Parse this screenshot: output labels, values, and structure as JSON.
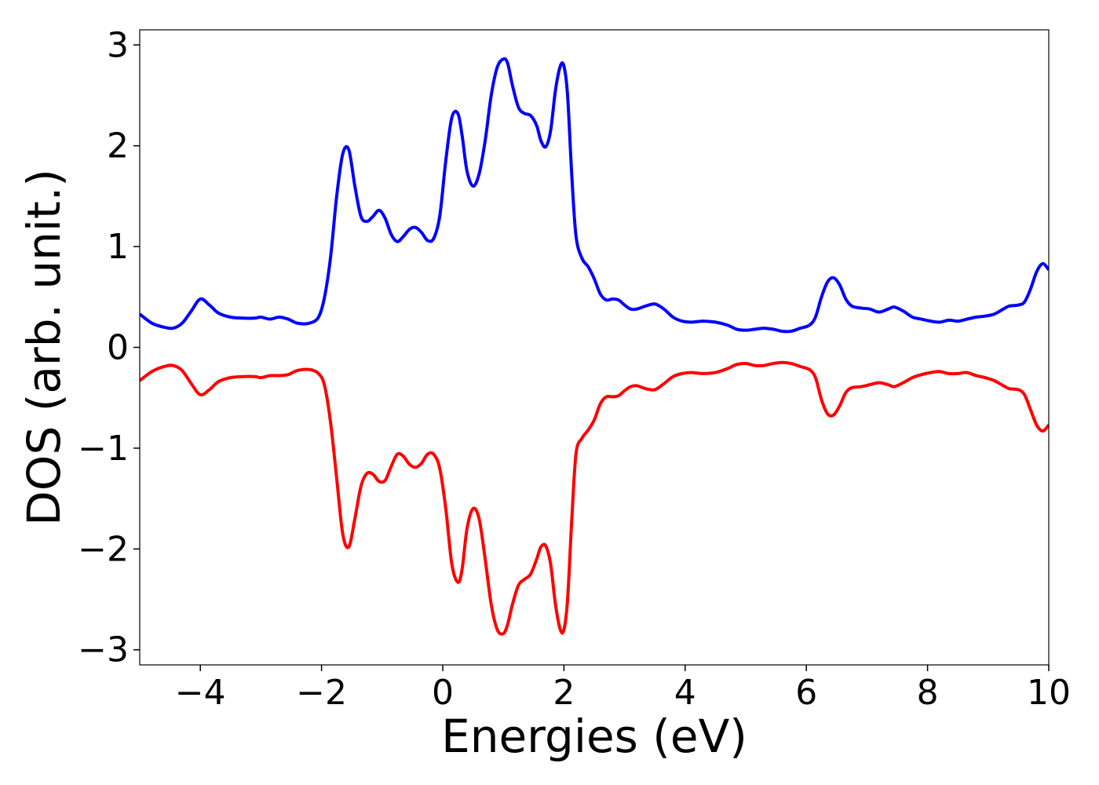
{
  "chart_data": {
    "type": "line",
    "xlabel": "Energies (eV)",
    "ylabel": "DOS (arb. unit.)",
    "xlim": [
      -5,
      10
    ],
    "ylim": [
      -3.15,
      3.15
    ],
    "x_ticks": [
      -4,
      -2,
      0,
      2,
      4,
      6,
      8,
      10
    ],
    "x_tick_labels": [
      "−4",
      "−2",
      "0",
      "2",
      "4",
      "6",
      "8",
      "10"
    ],
    "y_ticks": [
      -3,
      -2,
      -1,
      0,
      1,
      2,
      3
    ],
    "y_tick_labels": [
      "−3",
      "−2",
      "−1",
      "0",
      "1",
      "2",
      "3"
    ],
    "grid": false,
    "legend": "none",
    "series": [
      {
        "color": "#0000ff",
        "x": [
          -5.0,
          -4.8,
          -4.6,
          -4.45,
          -4.3,
          -4.15,
          -4.0,
          -3.85,
          -3.7,
          -3.5,
          -3.3,
          -3.1,
          -3.0,
          -2.85,
          -2.7,
          -2.55,
          -2.4,
          -2.2,
          -2.05,
          -1.95,
          -1.85,
          -1.75,
          -1.65,
          -1.55,
          -1.45,
          -1.35,
          -1.25,
          -1.15,
          -1.05,
          -0.95,
          -0.85,
          -0.75,
          -0.65,
          -0.55,
          -0.45,
          -0.35,
          -0.25,
          -0.15,
          -0.05,
          0.05,
          0.15,
          0.25,
          0.32,
          0.4,
          0.5,
          0.6,
          0.7,
          0.8,
          0.9,
          1.0,
          1.07,
          1.15,
          1.25,
          1.35,
          1.45,
          1.55,
          1.62,
          1.7,
          1.78,
          1.86,
          1.94,
          2.0,
          2.06,
          2.13,
          2.2,
          2.3,
          2.4,
          2.5,
          2.6,
          2.7,
          2.8,
          2.9,
          3.0,
          3.1,
          3.2,
          3.35,
          3.5,
          3.65,
          3.8,
          3.95,
          4.1,
          4.3,
          4.5,
          4.7,
          4.85,
          5.0,
          5.15,
          5.3,
          5.45,
          5.6,
          5.75,
          5.9,
          6.05,
          6.15,
          6.25,
          6.35,
          6.45,
          6.55,
          6.65,
          6.75,
          6.9,
          7.05,
          7.2,
          7.35,
          7.45,
          7.6,
          7.75,
          7.9,
          8.05,
          8.2,
          8.35,
          8.5,
          8.65,
          8.8,
          8.95,
          9.1,
          9.25,
          9.35,
          9.5,
          9.6,
          9.7,
          9.8,
          9.9,
          10.0
        ],
        "y": [
          0.33,
          0.24,
          0.2,
          0.19,
          0.24,
          0.36,
          0.48,
          0.42,
          0.34,
          0.3,
          0.29,
          0.29,
          0.3,
          0.28,
          0.3,
          0.28,
          0.24,
          0.24,
          0.3,
          0.5,
          0.9,
          1.5,
          1.92,
          1.96,
          1.6,
          1.3,
          1.25,
          1.3,
          1.36,
          1.28,
          1.12,
          1.05,
          1.1,
          1.17,
          1.19,
          1.14,
          1.06,
          1.08,
          1.3,
          1.85,
          2.28,
          2.32,
          2.1,
          1.75,
          1.6,
          1.72,
          2.05,
          2.5,
          2.78,
          2.86,
          2.82,
          2.6,
          2.38,
          2.32,
          2.3,
          2.2,
          2.05,
          1.99,
          2.15,
          2.55,
          2.79,
          2.79,
          2.5,
          1.7,
          1.1,
          0.88,
          0.8,
          0.68,
          0.53,
          0.47,
          0.48,
          0.47,
          0.42,
          0.38,
          0.38,
          0.41,
          0.43,
          0.38,
          0.3,
          0.26,
          0.25,
          0.26,
          0.25,
          0.22,
          0.18,
          0.17,
          0.18,
          0.19,
          0.18,
          0.16,
          0.16,
          0.19,
          0.22,
          0.3,
          0.5,
          0.65,
          0.69,
          0.62,
          0.48,
          0.41,
          0.39,
          0.38,
          0.35,
          0.38,
          0.4,
          0.36,
          0.3,
          0.28,
          0.26,
          0.25,
          0.27,
          0.26,
          0.28,
          0.3,
          0.31,
          0.33,
          0.38,
          0.41,
          0.42,
          0.45,
          0.58,
          0.75,
          0.83,
          0.77
        ]
      },
      {
        "color": "#ff0000",
        "x": [
          -5.0,
          -4.8,
          -4.6,
          -4.45,
          -4.3,
          -4.15,
          -4.0,
          -3.85,
          -3.7,
          -3.5,
          -3.3,
          -3.1,
          -3.0,
          -2.85,
          -2.7,
          -2.55,
          -2.4,
          -2.2,
          -2.05,
          -1.95,
          -1.85,
          -1.75,
          -1.65,
          -1.55,
          -1.45,
          -1.35,
          -1.25,
          -1.15,
          -1.05,
          -0.95,
          -0.85,
          -0.75,
          -0.65,
          -0.55,
          -0.45,
          -0.35,
          -0.25,
          -0.15,
          -0.05,
          0.05,
          0.15,
          0.25,
          0.32,
          0.4,
          0.5,
          0.6,
          0.7,
          0.8,
          0.9,
          1.0,
          1.07,
          1.15,
          1.25,
          1.35,
          1.45,
          1.55,
          1.62,
          1.7,
          1.78,
          1.86,
          1.94,
          2.0,
          2.06,
          2.13,
          2.2,
          2.3,
          2.4,
          2.5,
          2.6,
          2.7,
          2.8,
          2.9,
          3.0,
          3.1,
          3.2,
          3.35,
          3.5,
          3.65,
          3.8,
          3.95,
          4.1,
          4.3,
          4.5,
          4.7,
          4.85,
          5.0,
          5.15,
          5.3,
          5.45,
          5.6,
          5.75,
          5.9,
          6.05,
          6.15,
          6.25,
          6.35,
          6.45,
          6.55,
          6.65,
          6.75,
          6.9,
          7.05,
          7.2,
          7.35,
          7.45,
          7.6,
          7.75,
          7.9,
          8.05,
          8.2,
          8.35,
          8.5,
          8.65,
          8.8,
          8.95,
          9.1,
          9.25,
          9.35,
          9.5,
          9.6,
          9.7,
          9.8,
          9.9,
          10.0
        ],
        "y": [
          -0.33,
          -0.24,
          -0.19,
          -0.18,
          -0.23,
          -0.36,
          -0.47,
          -0.42,
          -0.34,
          -0.3,
          -0.29,
          -0.29,
          -0.3,
          -0.28,
          -0.28,
          -0.27,
          -0.23,
          -0.22,
          -0.26,
          -0.38,
          -0.75,
          -1.3,
          -1.85,
          -1.98,
          -1.7,
          -1.38,
          -1.25,
          -1.26,
          -1.33,
          -1.32,
          -1.18,
          -1.06,
          -1.08,
          -1.16,
          -1.19,
          -1.15,
          -1.06,
          -1.06,
          -1.2,
          -1.6,
          -2.15,
          -2.33,
          -2.2,
          -1.8,
          -1.6,
          -1.7,
          -2.1,
          -2.55,
          -2.8,
          -2.84,
          -2.75,
          -2.55,
          -2.36,
          -2.3,
          -2.25,
          -2.1,
          -1.98,
          -1.97,
          -2.15,
          -2.55,
          -2.8,
          -2.8,
          -2.5,
          -1.7,
          -1.05,
          -0.9,
          -0.82,
          -0.72,
          -0.56,
          -0.49,
          -0.49,
          -0.48,
          -0.43,
          -0.39,
          -0.38,
          -0.41,
          -0.42,
          -0.36,
          -0.29,
          -0.26,
          -0.25,
          -0.26,
          -0.25,
          -0.21,
          -0.17,
          -0.16,
          -0.18,
          -0.18,
          -0.16,
          -0.15,
          -0.16,
          -0.19,
          -0.22,
          -0.3,
          -0.52,
          -0.66,
          -0.67,
          -0.58,
          -0.45,
          -0.4,
          -0.39,
          -0.37,
          -0.35,
          -0.37,
          -0.39,
          -0.35,
          -0.3,
          -0.27,
          -0.25,
          -0.24,
          -0.26,
          -0.26,
          -0.25,
          -0.28,
          -0.3,
          -0.33,
          -0.38,
          -0.41,
          -0.42,
          -0.47,
          -0.62,
          -0.77,
          -0.83,
          -0.77
        ]
      }
    ]
  }
}
